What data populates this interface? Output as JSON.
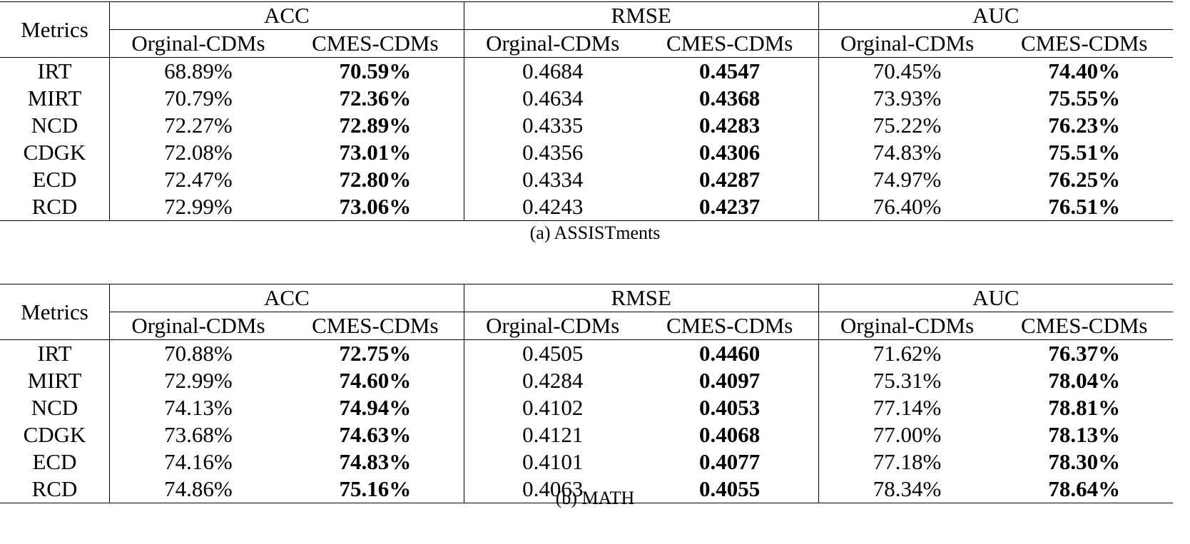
{
  "header": {
    "metrics_label": "Metrics",
    "groups": [
      "ACC",
      "RMSE",
      "AUC"
    ],
    "subcols": [
      "Orginal-CDMs",
      "CMES-CDMs"
    ]
  },
  "tables": [
    {
      "caption": "(a) ASSISTments",
      "rows": [
        {
          "model": "IRT",
          "acc_o": "68.89%",
          "acc_c": "70.59%",
          "rmse_o": "0.4684",
          "rmse_c": "0.4547",
          "auc_o": "70.45%",
          "auc_c": "74.40%"
        },
        {
          "model": "MIRT",
          "acc_o": "70.79%",
          "acc_c": "72.36%",
          "rmse_o": "0.4634",
          "rmse_c": "0.4368",
          "auc_o": "73.93%",
          "auc_c": "75.55%"
        },
        {
          "model": "NCD",
          "acc_o": "72.27%",
          "acc_c": "72.89%",
          "rmse_o": "0.4335",
          "rmse_c": "0.4283",
          "auc_o": "75.22%",
          "auc_c": "76.23%"
        },
        {
          "model": "CDGK",
          "acc_o": "72.08%",
          "acc_c": "73.01%",
          "rmse_o": "0.4356",
          "rmse_c": "0.4306",
          "auc_o": "74.83%",
          "auc_c": "75.51%"
        },
        {
          "model": "ECD",
          "acc_o": "72.47%",
          "acc_c": "72.80%",
          "rmse_o": "0.4334",
          "rmse_c": "0.4287",
          "auc_o": "74.97%",
          "auc_c": "76.25%"
        },
        {
          "model": "RCD",
          "acc_o": "72.99%",
          "acc_c": "73.06%",
          "rmse_o": "0.4243",
          "rmse_c": "0.4237",
          "auc_o": "76.40%",
          "auc_c": "76.51%"
        }
      ]
    },
    {
      "caption": "(b) MATH",
      "rows": [
        {
          "model": "IRT",
          "acc_o": "70.88%",
          "acc_c": "72.75%",
          "rmse_o": "0.4505",
          "rmse_c": "0.4460",
          "auc_o": "71.62%",
          "auc_c": "76.37%"
        },
        {
          "model": "MIRT",
          "acc_o": "72.99%",
          "acc_c": "74.60%",
          "rmse_o": "0.4284",
          "rmse_c": "0.4097",
          "auc_o": "75.31%",
          "auc_c": "78.04%"
        },
        {
          "model": "NCD",
          "acc_o": "74.13%",
          "acc_c": "74.94%",
          "rmse_o": "0.4102",
          "rmse_c": "0.4053",
          "auc_o": "77.14%",
          "auc_c": "78.81%"
        },
        {
          "model": "CDGK",
          "acc_o": "73.68%",
          "acc_c": "74.63%",
          "rmse_o": "0.4121",
          "rmse_c": "0.4068",
          "auc_o": "77.00%",
          "auc_c": "78.13%"
        },
        {
          "model": "ECD",
          "acc_o": "74.16%",
          "acc_c": "74.83%",
          "rmse_o": "0.4101",
          "rmse_c": "0.4077",
          "auc_o": "77.18%",
          "auc_c": "78.30%"
        },
        {
          "model": "RCD",
          "acc_o": "74.86%",
          "acc_c": "75.16%",
          "rmse_o": "0.4063",
          "rmse_c": "0.4055",
          "auc_o": "78.34%",
          "auc_c": "78.64%"
        }
      ]
    }
  ]
}
